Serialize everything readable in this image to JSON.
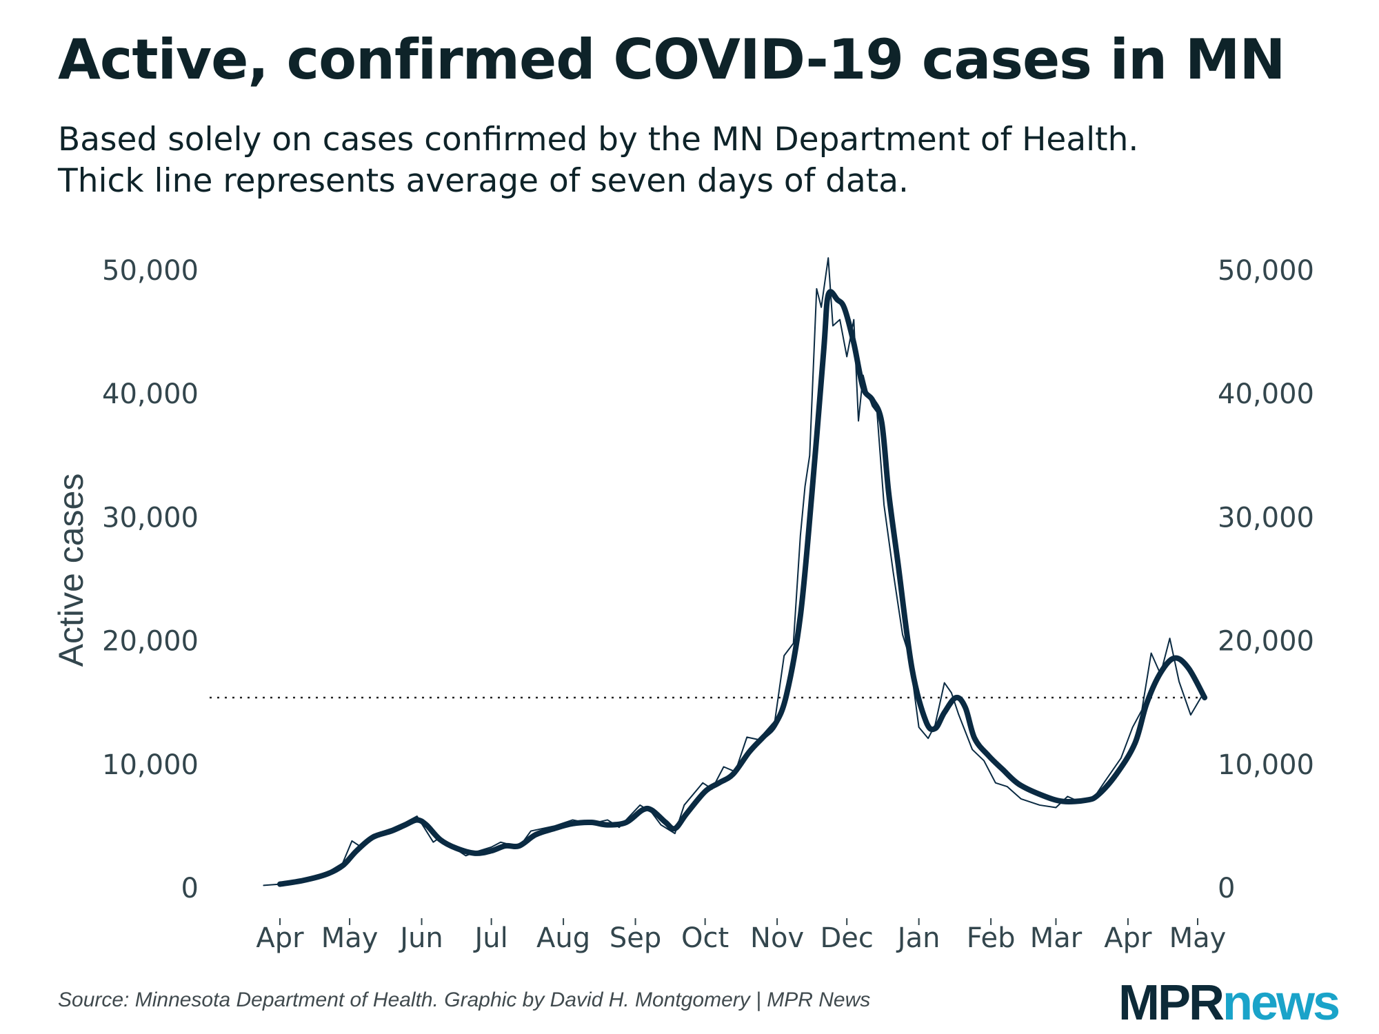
{
  "title": "Active, confirmed COVID-19 cases in MN",
  "subtitle_lines": [
    "Based solely on cases confirmed by the MN Department of Health.",
    "Thick line represents average of seven days of data."
  ],
  "source": "Source: Minnesota Department of Health. Graphic by David H. Montgomery | MPR News",
  "logo": {
    "part1": "MPR",
    "part2": "news"
  },
  "colors": {
    "line": "#0a2a42",
    "text": "#0e2329",
    "tick": "#33464d",
    "logo_dark": "#0d2a38",
    "logo_accent": "#1aa3c9"
  },
  "chart_data": {
    "type": "line",
    "title": "Active, confirmed COVID-19 cases in MN",
    "ylabel": "Active cases",
    "xlabel": "",
    "ylim": [
      0,
      50000
    ],
    "y_ticks": [
      0,
      10000,
      20000,
      30000,
      40000,
      50000
    ],
    "y_tick_labels": [
      "0",
      "10,000",
      "20,000",
      "30,000",
      "40,000",
      "50,000"
    ],
    "y_axes": [
      "left",
      "right"
    ],
    "x_range": [
      "2020-04-01",
      "2021-05-01"
    ],
    "x_ticks": [
      "2020-04-01",
      "2020-05-01",
      "2020-06-01",
      "2020-07-01",
      "2020-08-01",
      "2020-09-01",
      "2020-10-01",
      "2020-11-01",
      "2020-12-01",
      "2021-01-01",
      "2021-02-01",
      "2021-03-01",
      "2021-04-01",
      "2021-05-01"
    ],
    "x_tick_labels": [
      "Apr",
      "May",
      "Jun",
      "Jul",
      "Aug",
      "Sep",
      "Oct",
      "Nov",
      "Dec",
      "Jan",
      "Feb",
      "Mar",
      "Apr",
      "May"
    ],
    "grid": false,
    "reference_line": {
      "value": 15400,
      "style": "dotted"
    },
    "series": [
      {
        "style": "thick",
        "points": [
          [
            "2020-04-01",
            300
          ],
          [
            "2020-04-11",
            600
          ],
          [
            "2020-04-21",
            1100
          ],
          [
            "2020-04-28",
            1800
          ],
          [
            "2020-05-04",
            3000
          ],
          [
            "2020-05-11",
            4100
          ],
          [
            "2020-05-19",
            4600
          ],
          [
            "2020-05-25",
            5100
          ],
          [
            "2020-05-30",
            5500
          ],
          [
            "2020-06-03",
            5100
          ],
          [
            "2020-06-09",
            3900
          ],
          [
            "2020-06-16",
            3200
          ],
          [
            "2020-06-24",
            2800
          ],
          [
            "2020-07-01",
            3000
          ],
          [
            "2020-07-07",
            3400
          ],
          [
            "2020-07-13",
            3400
          ],
          [
            "2020-07-20",
            4300
          ],
          [
            "2020-07-28",
            4800
          ],
          [
            "2020-08-05",
            5200
          ],
          [
            "2020-08-13",
            5300
          ],
          [
            "2020-08-20",
            5100
          ],
          [
            "2020-08-28",
            5300
          ],
          [
            "2020-09-04",
            6300
          ],
          [
            "2020-09-08",
            6300
          ],
          [
            "2020-09-14",
            5300
          ],
          [
            "2020-09-18",
            4800
          ],
          [
            "2020-09-23",
            6000
          ],
          [
            "2020-10-01",
            7800
          ],
          [
            "2020-10-07",
            8500
          ],
          [
            "2020-10-13",
            9200
          ],
          [
            "2020-10-20",
            11000
          ],
          [
            "2020-10-26",
            12200
          ],
          [
            "2020-10-31",
            13200
          ],
          [
            "2020-11-05",
            15600
          ],
          [
            "2020-11-11",
            22000
          ],
          [
            "2020-11-16",
            32000
          ],
          [
            "2020-11-21",
            43400
          ],
          [
            "2020-11-23",
            48000
          ],
          [
            "2020-11-27",
            47600
          ],
          [
            "2020-11-30",
            46900
          ],
          [
            "2020-12-04",
            44100
          ],
          [
            "2020-12-08",
            40500
          ],
          [
            "2020-12-12",
            39500
          ],
          [
            "2020-12-16",
            37700
          ],
          [
            "2020-12-19",
            32000
          ],
          [
            "2020-12-23",
            26300
          ],
          [
            "2020-12-29",
            17800
          ],
          [
            "2021-01-04",
            13500
          ],
          [
            "2021-01-08",
            12900
          ],
          [
            "2021-01-12",
            14200
          ],
          [
            "2021-01-17",
            15400
          ],
          [
            "2021-01-21",
            14600
          ],
          [
            "2021-01-25",
            12100
          ],
          [
            "2021-01-31",
            10700
          ],
          [
            "2021-02-06",
            9600
          ],
          [
            "2021-02-13",
            8400
          ],
          [
            "2021-02-23",
            7500
          ],
          [
            "2021-03-04",
            7000
          ],
          [
            "2021-03-14",
            7100
          ],
          [
            "2021-03-19",
            7500
          ],
          [
            "2021-03-27",
            9200
          ],
          [
            "2021-04-04",
            11700
          ],
          [
            "2021-04-09",
            14900
          ],
          [
            "2021-04-15",
            17400
          ],
          [
            "2021-04-21",
            18600
          ],
          [
            "2021-04-27",
            17800
          ],
          [
            "2021-05-04",
            15400
          ]
        ]
      },
      {
        "style": "thin",
        "points": [
          [
            "2020-03-25",
            200
          ],
          [
            "2020-04-01",
            300
          ],
          [
            "2020-04-11",
            700
          ],
          [
            "2020-04-21",
            1200
          ],
          [
            "2020-04-28",
            2000
          ],
          [
            "2020-05-02",
            3800
          ],
          [
            "2020-05-06",
            3300
          ],
          [
            "2020-05-11",
            4300
          ],
          [
            "2020-05-19",
            4800
          ],
          [
            "2020-05-25",
            5300
          ],
          [
            "2020-05-30",
            5800
          ],
          [
            "2020-06-03",
            4600
          ],
          [
            "2020-06-06",
            3700
          ],
          [
            "2020-06-09",
            4100
          ],
          [
            "2020-06-16",
            3100
          ],
          [
            "2020-06-20",
            2600
          ],
          [
            "2020-06-24",
            2900
          ],
          [
            "2020-07-01",
            3300
          ],
          [
            "2020-07-05",
            3700
          ],
          [
            "2020-07-13",
            3300
          ],
          [
            "2020-07-18",
            4600
          ],
          [
            "2020-07-28",
            5000
          ],
          [
            "2020-08-05",
            5500
          ],
          [
            "2020-08-13",
            5200
          ],
          [
            "2020-08-20",
            5500
          ],
          [
            "2020-08-25",
            4900
          ],
          [
            "2020-08-28",
            5500
          ],
          [
            "2020-09-03",
            6700
          ],
          [
            "2020-09-08",
            6100
          ],
          [
            "2020-09-12",
            5100
          ],
          [
            "2020-09-18",
            4400
          ],
          [
            "2020-09-22",
            6700
          ],
          [
            "2020-09-30",
            8500
          ],
          [
            "2020-10-04",
            8000
          ],
          [
            "2020-10-09",
            9800
          ],
          [
            "2020-10-14",
            9400
          ],
          [
            "2020-10-19",
            12200
          ],
          [
            "2020-10-24",
            12000
          ],
          [
            "2020-10-31",
            13500
          ],
          [
            "2020-11-04",
            18800
          ],
          [
            "2020-11-08",
            19800
          ],
          [
            "2020-11-11",
            28500
          ],
          [
            "2020-11-13",
            32500
          ],
          [
            "2020-11-15",
            35000
          ],
          [
            "2020-11-18",
            48500
          ],
          [
            "2020-11-20",
            47000
          ],
          [
            "2020-11-23",
            51000
          ],
          [
            "2020-11-25",
            45500
          ],
          [
            "2020-11-28",
            46000
          ],
          [
            "2020-12-01",
            43000
          ],
          [
            "2020-12-04",
            46000
          ],
          [
            "2020-12-06",
            37800
          ],
          [
            "2020-12-08",
            41500
          ],
          [
            "2020-12-10",
            40000
          ],
          [
            "2020-12-12",
            39000
          ],
          [
            "2020-12-14",
            38500
          ],
          [
            "2020-12-17",
            31000
          ],
          [
            "2020-12-21",
            25500
          ],
          [
            "2020-12-25",
            20500
          ],
          [
            "2020-12-28",
            18700
          ],
          [
            "2021-01-01",
            13000
          ],
          [
            "2021-01-05",
            12100
          ],
          [
            "2021-01-08",
            13200
          ],
          [
            "2021-01-12",
            16600
          ],
          [
            "2021-01-15",
            15800
          ],
          [
            "2021-01-18",
            14100
          ],
          [
            "2021-01-24",
            11200
          ],
          [
            "2021-01-29",
            10300
          ],
          [
            "2021-02-03",
            8500
          ],
          [
            "2021-02-08",
            8200
          ],
          [
            "2021-02-14",
            7200
          ],
          [
            "2021-02-22",
            6700
          ],
          [
            "2021-03-01",
            6500
          ],
          [
            "2021-03-06",
            7400
          ],
          [
            "2021-03-12",
            6900
          ],
          [
            "2021-03-17",
            7200
          ],
          [
            "2021-03-22",
            8600
          ],
          [
            "2021-03-29",
            10500
          ],
          [
            "2021-04-03",
            13000
          ],
          [
            "2021-04-07",
            14400
          ],
          [
            "2021-04-11",
            19000
          ],
          [
            "2021-04-15",
            17300
          ],
          [
            "2021-04-19",
            20200
          ],
          [
            "2021-04-23",
            16700
          ],
          [
            "2021-04-28",
            14000
          ],
          [
            "2021-05-03",
            15600
          ]
        ]
      }
    ]
  }
}
